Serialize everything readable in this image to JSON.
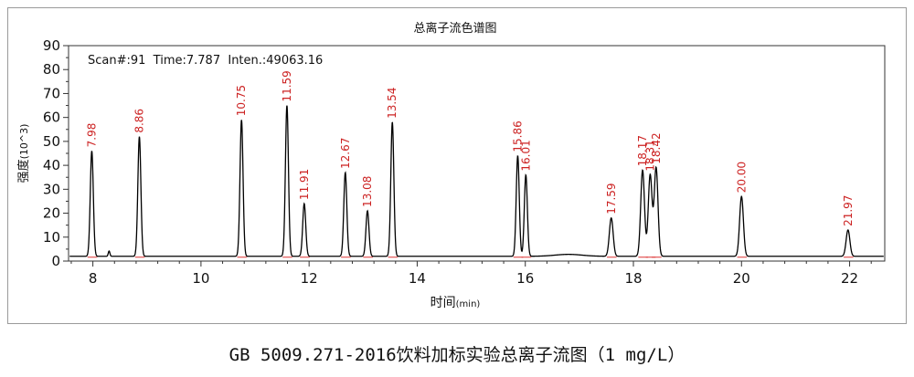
{
  "caption": "GB 5009.271-2016饮料加标实验总离子流图（1 mg/L）",
  "chart_data": {
    "type": "line",
    "title": "总离子流色谱图",
    "info_line": "Scan#:91  Time:7.787  Inten.:49063.16",
    "xlabel": "时间",
    "xunit": "(min)",
    "ylabel": "强度",
    "yunit": "(10^3)",
    "xlim": [
      7.55,
      22.65
    ],
    "ylim": [
      0,
      90
    ],
    "xticks": [
      8,
      10,
      12,
      14,
      16,
      18,
      20,
      22
    ],
    "yticks": [
      0,
      10,
      20,
      30,
      40,
      50,
      60,
      70,
      80,
      90
    ],
    "grid": false,
    "line_color": "#000000",
    "label_color": "#cc2222",
    "baseline": 2,
    "peaks": [
      {
        "x": 7.98,
        "y": 46,
        "label": "7.98"
      },
      {
        "x": 8.86,
        "y": 52,
        "label": "8.86"
      },
      {
        "x": 10.75,
        "y": 59,
        "label": "10.75"
      },
      {
        "x": 11.59,
        "y": 65,
        "label": "11.59"
      },
      {
        "x": 11.91,
        "y": 24,
        "label": "11.91"
      },
      {
        "x": 12.67,
        "y": 37,
        "label": "12.67"
      },
      {
        "x": 13.08,
        "y": 21,
        "label": "13.08"
      },
      {
        "x": 13.54,
        "y": 58,
        "label": "13.54"
      },
      {
        "x": 15.86,
        "y": 44,
        "label": "15.86"
      },
      {
        "x": 16.01,
        "y": 36,
        "label": "16.01"
      },
      {
        "x": 17.59,
        "y": 18,
        "label": "17.59"
      },
      {
        "x": 18.17,
        "y": 38,
        "label": "18.17"
      },
      {
        "x": 18.31,
        "y": 36,
        "label": "18.31"
      },
      {
        "x": 18.42,
        "y": 39,
        "label": "18.42"
      },
      {
        "x": 20.0,
        "y": 27,
        "label": "20.00"
      },
      {
        "x": 21.97,
        "y": 13,
        "label": "21.97"
      }
    ]
  }
}
